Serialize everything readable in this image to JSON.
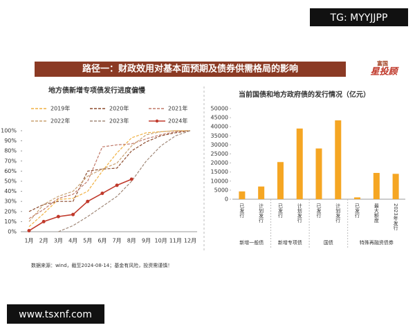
{
  "watermarks": [
    "TG: MYYJJPP",
    "www.tsxnf.com"
  ],
  "banner_title": "路径一：财政效用对基本面预期及债券供需格局的影响",
  "logo": [
    "富国",
    "星投顾"
  ],
  "source": "数据来源：wind，截至2024-08-14；基金有风险，投资需谨慎！",
  "chart_data": [
    {
      "type": "line",
      "title": "地方债新增专项债发行进度偏慢",
      "categories": [
        "1月",
        "2月",
        "3月",
        "4月",
        "5月",
        "6月",
        "7月",
        "8月",
        "9月",
        "10月",
        "11月",
        "12月"
      ],
      "series": [
        {
          "name": "2019年",
          "color": "#f0b040",
          "values": [
            5,
            18,
            32,
            33,
            40,
            60,
            78,
            93,
            98,
            99,
            100,
            100
          ]
        },
        {
          "name": "2020年",
          "color": "#8b4a2b",
          "values": [
            20,
            27,
            30,
            30,
            60,
            62,
            63,
            80,
            89,
            95,
            98,
            100
          ]
        },
        {
          "name": "2021年",
          "color": "#c07868",
          "values": [
            13,
            22,
            33,
            37,
            50,
            84,
            86,
            87,
            92,
            96,
            99,
            100
          ]
        },
        {
          "name": "2022年",
          "color": "#c8a070",
          "values": [
            10,
            27,
            35,
            40,
            55,
            62,
            68,
            85,
            96,
            99,
            100,
            100
          ]
        },
        {
          "name": "2023年",
          "color": "#a08878",
          "values": [
            null,
            null,
            0,
            6,
            15,
            25,
            35,
            50,
            70,
            85,
            95,
            100
          ]
        },
        {
          "name": "2024年",
          "color": "#c0392b",
          "values": [
            1,
            10,
            15,
            17,
            30,
            38,
            46,
            52,
            null,
            null,
            null,
            null
          ]
        }
      ],
      "ylim": [
        0,
        100
      ],
      "yticks": [
        {
          "value": 0,
          "label": "0%"
        },
        {
          "value": 10,
          "label": "10%"
        },
        {
          "value": 20,
          "label": "20%"
        },
        {
          "value": 30,
          "label": "30%"
        },
        {
          "value": 40,
          "label": "40%"
        },
        {
          "value": 50,
          "label": "50%"
        },
        {
          "value": 60,
          "label": "60%"
        },
        {
          "value": 70,
          "label": "70%"
        },
        {
          "value": 80,
          "label": "80%"
        },
        {
          "value": 90,
          "label": "90%"
        },
        {
          "value": 100,
          "label": "100%"
        }
      ]
    },
    {
      "type": "bar",
      "title": "当前国债和地方政府债的发行情况（亿元）",
      "categories": [
        "已发行",
        "计划发行",
        "已发行",
        "计划发行",
        "已发行",
        "计划发行",
        "已发行",
        "最大额度",
        "2023年发行"
      ],
      "groups": [
        "新增一般债",
        "新增专项债",
        "国债",
        "特殊再融资债券"
      ],
      "values": [
        4300,
        7000,
        20500,
        39000,
        28000,
        43500,
        1000,
        14500,
        14000
      ],
      "color": "#f5a623",
      "ylim": [
        0,
        50000
      ],
      "yticks": [
        0,
        5000,
        10000,
        15000,
        20000,
        25000,
        30000,
        35000,
        40000,
        45000,
        50000
      ]
    }
  ]
}
